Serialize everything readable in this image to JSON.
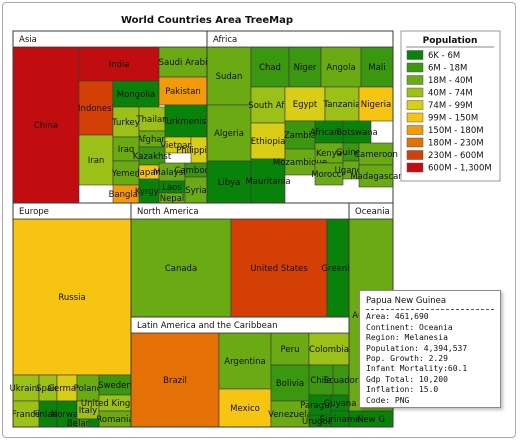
{
  "chart_data": {
    "type": "treemap",
    "title": "World Countries Area TreeMap",
    "legend": {
      "title": "Population",
      "placement": "right",
      "items": [
        {
          "label": "6K - 6M",
          "color": "#098209"
        },
        {
          "label": "6M - 18M",
          "color": "#3a970f"
        },
        {
          "label": "18M - 40M",
          "color": "#6aab14"
        },
        {
          "label": "40M - 74M",
          "color": "#9bc018"
        },
        {
          "label": "74M - 99M",
          "color": "#d9cd16"
        },
        {
          "label": "99M - 150M",
          "color": "#f7c411"
        },
        {
          "label": "150M - 180M",
          "color": "#f29a0a"
        },
        {
          "label": "180M - 230M",
          "color": "#e47006"
        },
        {
          "label": "230M - 600M",
          "color": "#d43f06"
        },
        {
          "label": "600M - 1,300M",
          "color": "#c10c10"
        }
      ]
    },
    "regions": [
      {
        "name": "Asia",
        "countries": [
          {
            "label": "China",
            "band": 9
          },
          {
            "label": "India",
            "band": 9
          },
          {
            "label": "Saudi Arabi",
            "band": 2
          },
          {
            "label": "Indonesi",
            "band": 8
          },
          {
            "label": "Mongolia",
            "band": 0
          },
          {
            "label": "Pakistan",
            "band": 6
          },
          {
            "label": "Iran",
            "band": 3
          },
          {
            "label": "Turkey",
            "band": 3
          },
          {
            "label": "Thailan",
            "band": 3
          },
          {
            "label": "Turkmenist",
            "band": 0
          },
          {
            "label": "Afghan",
            "band": 2
          },
          {
            "label": "Iraq",
            "band": 2
          },
          {
            "label": "Vietnam",
            "band": 4
          },
          {
            "label": "Philippines",
            "band": 4
          },
          {
            "label": "Kazakhst",
            "band": 1
          },
          {
            "label": "Yemen",
            "band": 2
          },
          {
            "label": "Japan",
            "band": 5
          },
          {
            "label": "Malaysia",
            "band": 2
          },
          {
            "label": "Cambodia",
            "band": 1
          },
          {
            "label": "Banglad",
            "band": 6
          },
          {
            "label": "Kyrgyz",
            "band": 0
          },
          {
            "label": "Laos",
            "band": 0
          },
          {
            "label": "Nepal",
            "band": 2
          },
          {
            "label": "Syria",
            "band": 2
          }
        ]
      },
      {
        "name": "Africa",
        "countries": [
          {
            "label": "Sudan",
            "band": 2
          },
          {
            "label": "Chad",
            "band": 1
          },
          {
            "label": "Niger",
            "band": 1
          },
          {
            "label": "Angola",
            "band": 2
          },
          {
            "label": "Mali",
            "band": 1
          },
          {
            "label": "Algeria",
            "band": 2
          },
          {
            "label": "South Afr",
            "band": 3
          },
          {
            "label": "Egypt",
            "band": 4
          },
          {
            "label": "Tanzania",
            "band": 3
          },
          {
            "label": "Nigeria",
            "band": 5
          },
          {
            "label": "Ethiopia",
            "band": 4
          },
          {
            "label": "Zambia",
            "band": 1
          },
          {
            "label": "African R",
            "band": 0
          },
          {
            "label": "Botswana",
            "band": 0
          },
          {
            "label": "Kenya",
            "band": 2
          },
          {
            "label": "Libya",
            "band": 0
          },
          {
            "label": "Mauritania",
            "band": 0
          },
          {
            "label": "Mozambique",
            "band": 2
          },
          {
            "label": "Guinea",
            "band": 1
          },
          {
            "label": "Cameroon",
            "band": 2
          },
          {
            "label": "Morocco",
            "band": 2
          },
          {
            "label": "Uganda",
            "band": 2
          },
          {
            "label": "Madagascar",
            "band": 2
          }
        ]
      },
      {
        "name": "Europe",
        "countries": [
          {
            "label": "Russia",
            "band": 5
          },
          {
            "label": "Ukraine",
            "band": 3
          },
          {
            "label": "Spain",
            "band": 3
          },
          {
            "label": "Germany",
            "band": 4
          },
          {
            "label": "Poland",
            "band": 2
          },
          {
            "label": "Sweden",
            "band": 1
          },
          {
            "label": "France",
            "band": 3
          },
          {
            "label": "Finland",
            "band": 0
          },
          {
            "label": "Norway",
            "band": 0
          },
          {
            "label": "Italy",
            "band": 3
          },
          {
            "label": "United Kingdom",
            "band": 3
          },
          {
            "label": "Romania",
            "band": 2
          },
          {
            "label": "Belarus",
            "band": 1
          },
          {
            "label": "Kirgiz",
            "band": 0
          }
        ]
      },
      {
        "name": "North America",
        "countries": [
          {
            "label": "Canada",
            "band": 2
          },
          {
            "label": "United States",
            "band": 8
          },
          {
            "label": "Greenla",
            "band": 0
          }
        ]
      },
      {
        "name": "Oceania",
        "countries": [
          {
            "label": "Australia",
            "band": 2
          },
          {
            "label": "New G",
            "band": 0
          }
        ]
      },
      {
        "name": "Latin America and the Caribbean",
        "countries": [
          {
            "label": "Brazil",
            "band": 7
          },
          {
            "label": "Argentina",
            "band": 2
          },
          {
            "label": "Mexico",
            "band": 5
          },
          {
            "label": "Peru",
            "band": 2
          },
          {
            "label": "Colombia",
            "band": 3
          },
          {
            "label": "Bolivia",
            "band": 1
          },
          {
            "label": "Chile",
            "band": 1
          },
          {
            "label": "Venezuela",
            "band": 2
          },
          {
            "label": "Paraguay",
            "band": 0
          },
          {
            "label": "Ecuador",
            "band": 1
          },
          {
            "label": "Guyana",
            "band": 0
          },
          {
            "label": "Uruguay",
            "band": 0
          },
          {
            "label": "Suriname",
            "band": 0
          },
          {
            "label": "Cuba",
            "band": 1
          }
        ]
      }
    ]
  },
  "tooltip": {
    "title": "Papua New Guinea",
    "rows": [
      "Area: 461,690",
      "Continent: Oceania",
      "Region: Melanesia",
      "Population: 4,394,537",
      "Pop. Growth: 2.29",
      "Infant Mortality:60.1",
      "Gdp Total: 10,200",
      "Inflation: 15.0",
      "Code: PNG"
    ]
  }
}
